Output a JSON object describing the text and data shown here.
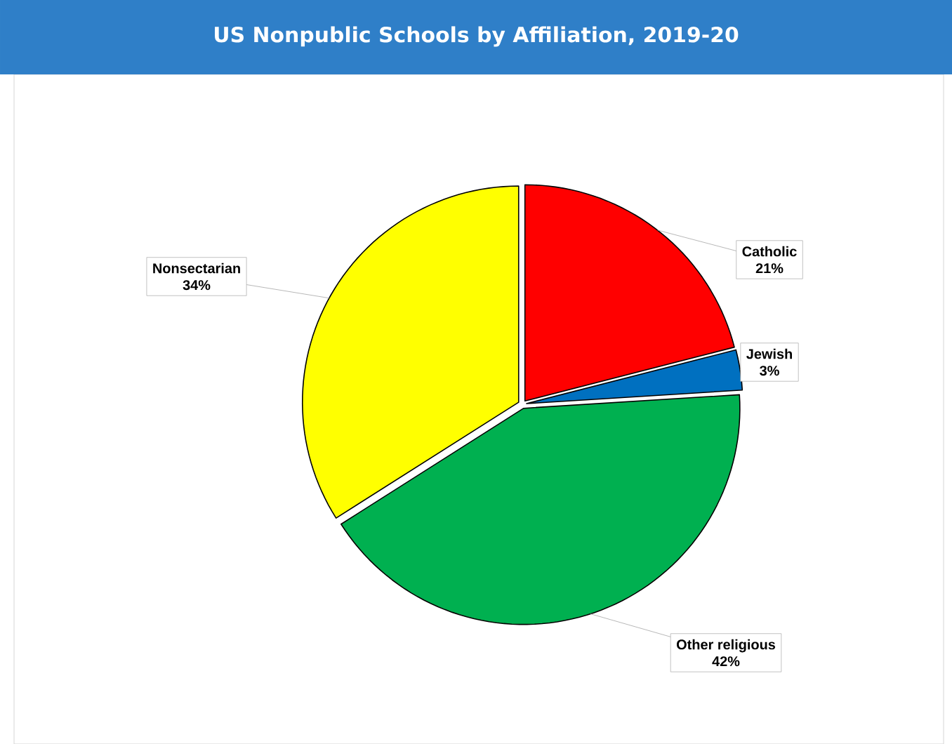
{
  "chart_data": {
    "type": "pie",
    "title": "US Nonpublic Schools by Affiliation, 2019-20",
    "categories": [
      "Catholic",
      "Jewish",
      "Other religious",
      "Nonsectarian"
    ],
    "values": [
      21,
      3,
      42,
      34
    ],
    "value_labels": [
      "21%",
      "3%",
      "42%",
      "34%"
    ],
    "colors": [
      "#ff0000",
      "#0070c0",
      "#00b050",
      "#ffff00"
    ],
    "legend": false
  }
}
